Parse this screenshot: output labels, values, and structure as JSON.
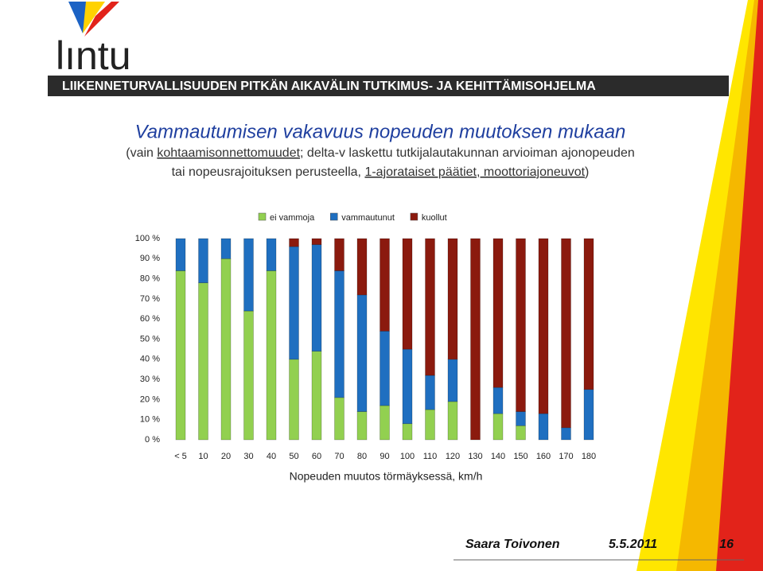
{
  "header": {
    "logo": "lıntu",
    "banner": "LIIKENNETURVALLISUUDEN PITKÄN AIKAVÄLIN TUTKIMUS- JA KEHITTÄMISOHJELMA"
  },
  "slide": {
    "title": "Vammautumisen vakavuus nopeuden muutoksen mukaan",
    "subtitle_line1": [
      "(vain ",
      "kohtaamisonnettomuudet",
      "; delta-v laskettu tutkijalautakunnan arvioiman ajonopeuden"
    ],
    "subtitle_line2": [
      "tai nopeusrajoituksen  perusteella, ",
      "1-ajorataiset päätiet, moottoriajoneuvot",
      ")"
    ]
  },
  "chart_data": {
    "type": "stacked-bar",
    "categories": [
      "< 5",
      "10",
      "20",
      "30",
      "40",
      "50",
      "60",
      "70",
      "80",
      "90",
      "100",
      "110",
      "120",
      "130",
      "140",
      "150",
      "160",
      "170",
      "180"
    ],
    "series": [
      {
        "name": "ei vammoja",
        "color": "#92d050",
        "values": [
          84,
          78,
          90,
          64,
          84,
          40,
          44,
          21,
          14,
          17,
          8,
          15,
          19,
          0,
          13,
          7,
          0,
          0,
          0
        ]
      },
      {
        "name": "vammautunut",
        "color": "#1f6fc0",
        "values": [
          16,
          22,
          10,
          36,
          16,
          56,
          53,
          63,
          58,
          37,
          37,
          17,
          21,
          0,
          13,
          7,
          13,
          6,
          25
        ]
      },
      {
        "name": "kuollut",
        "color": "#8b1a0e",
        "values": [
          0,
          0,
          0,
          0,
          0,
          4,
          3,
          16,
          28,
          46,
          55,
          68,
          60,
          100,
          74,
          86,
          87,
          94,
          75
        ]
      }
    ],
    "ylim": [
      0,
      100
    ],
    "yticks": [
      {
        "value": 0,
        "label": "0 %"
      },
      {
        "value": 10,
        "label": "10 %"
      },
      {
        "value": 20,
        "label": "20 %"
      },
      {
        "value": 30,
        "label": "30 %"
      },
      {
        "value": 40,
        "label": "40 %"
      },
      {
        "value": 50,
        "label": "50 %"
      },
      {
        "value": 60,
        "label": "60 %"
      },
      {
        "value": 70,
        "label": "70 %"
      },
      {
        "value": 80,
        "label": "80 %"
      },
      {
        "value": 90,
        "label": "90 %"
      },
      {
        "value": 100,
        "label": "100 %"
      }
    ],
    "xlabel": "Nopeuden muutos törmäyksessä, km/h",
    "legend": "top",
    "grid": false
  },
  "footer": {
    "author": "Saara Toivonen",
    "date": "5.5.2011",
    "page": "16"
  }
}
